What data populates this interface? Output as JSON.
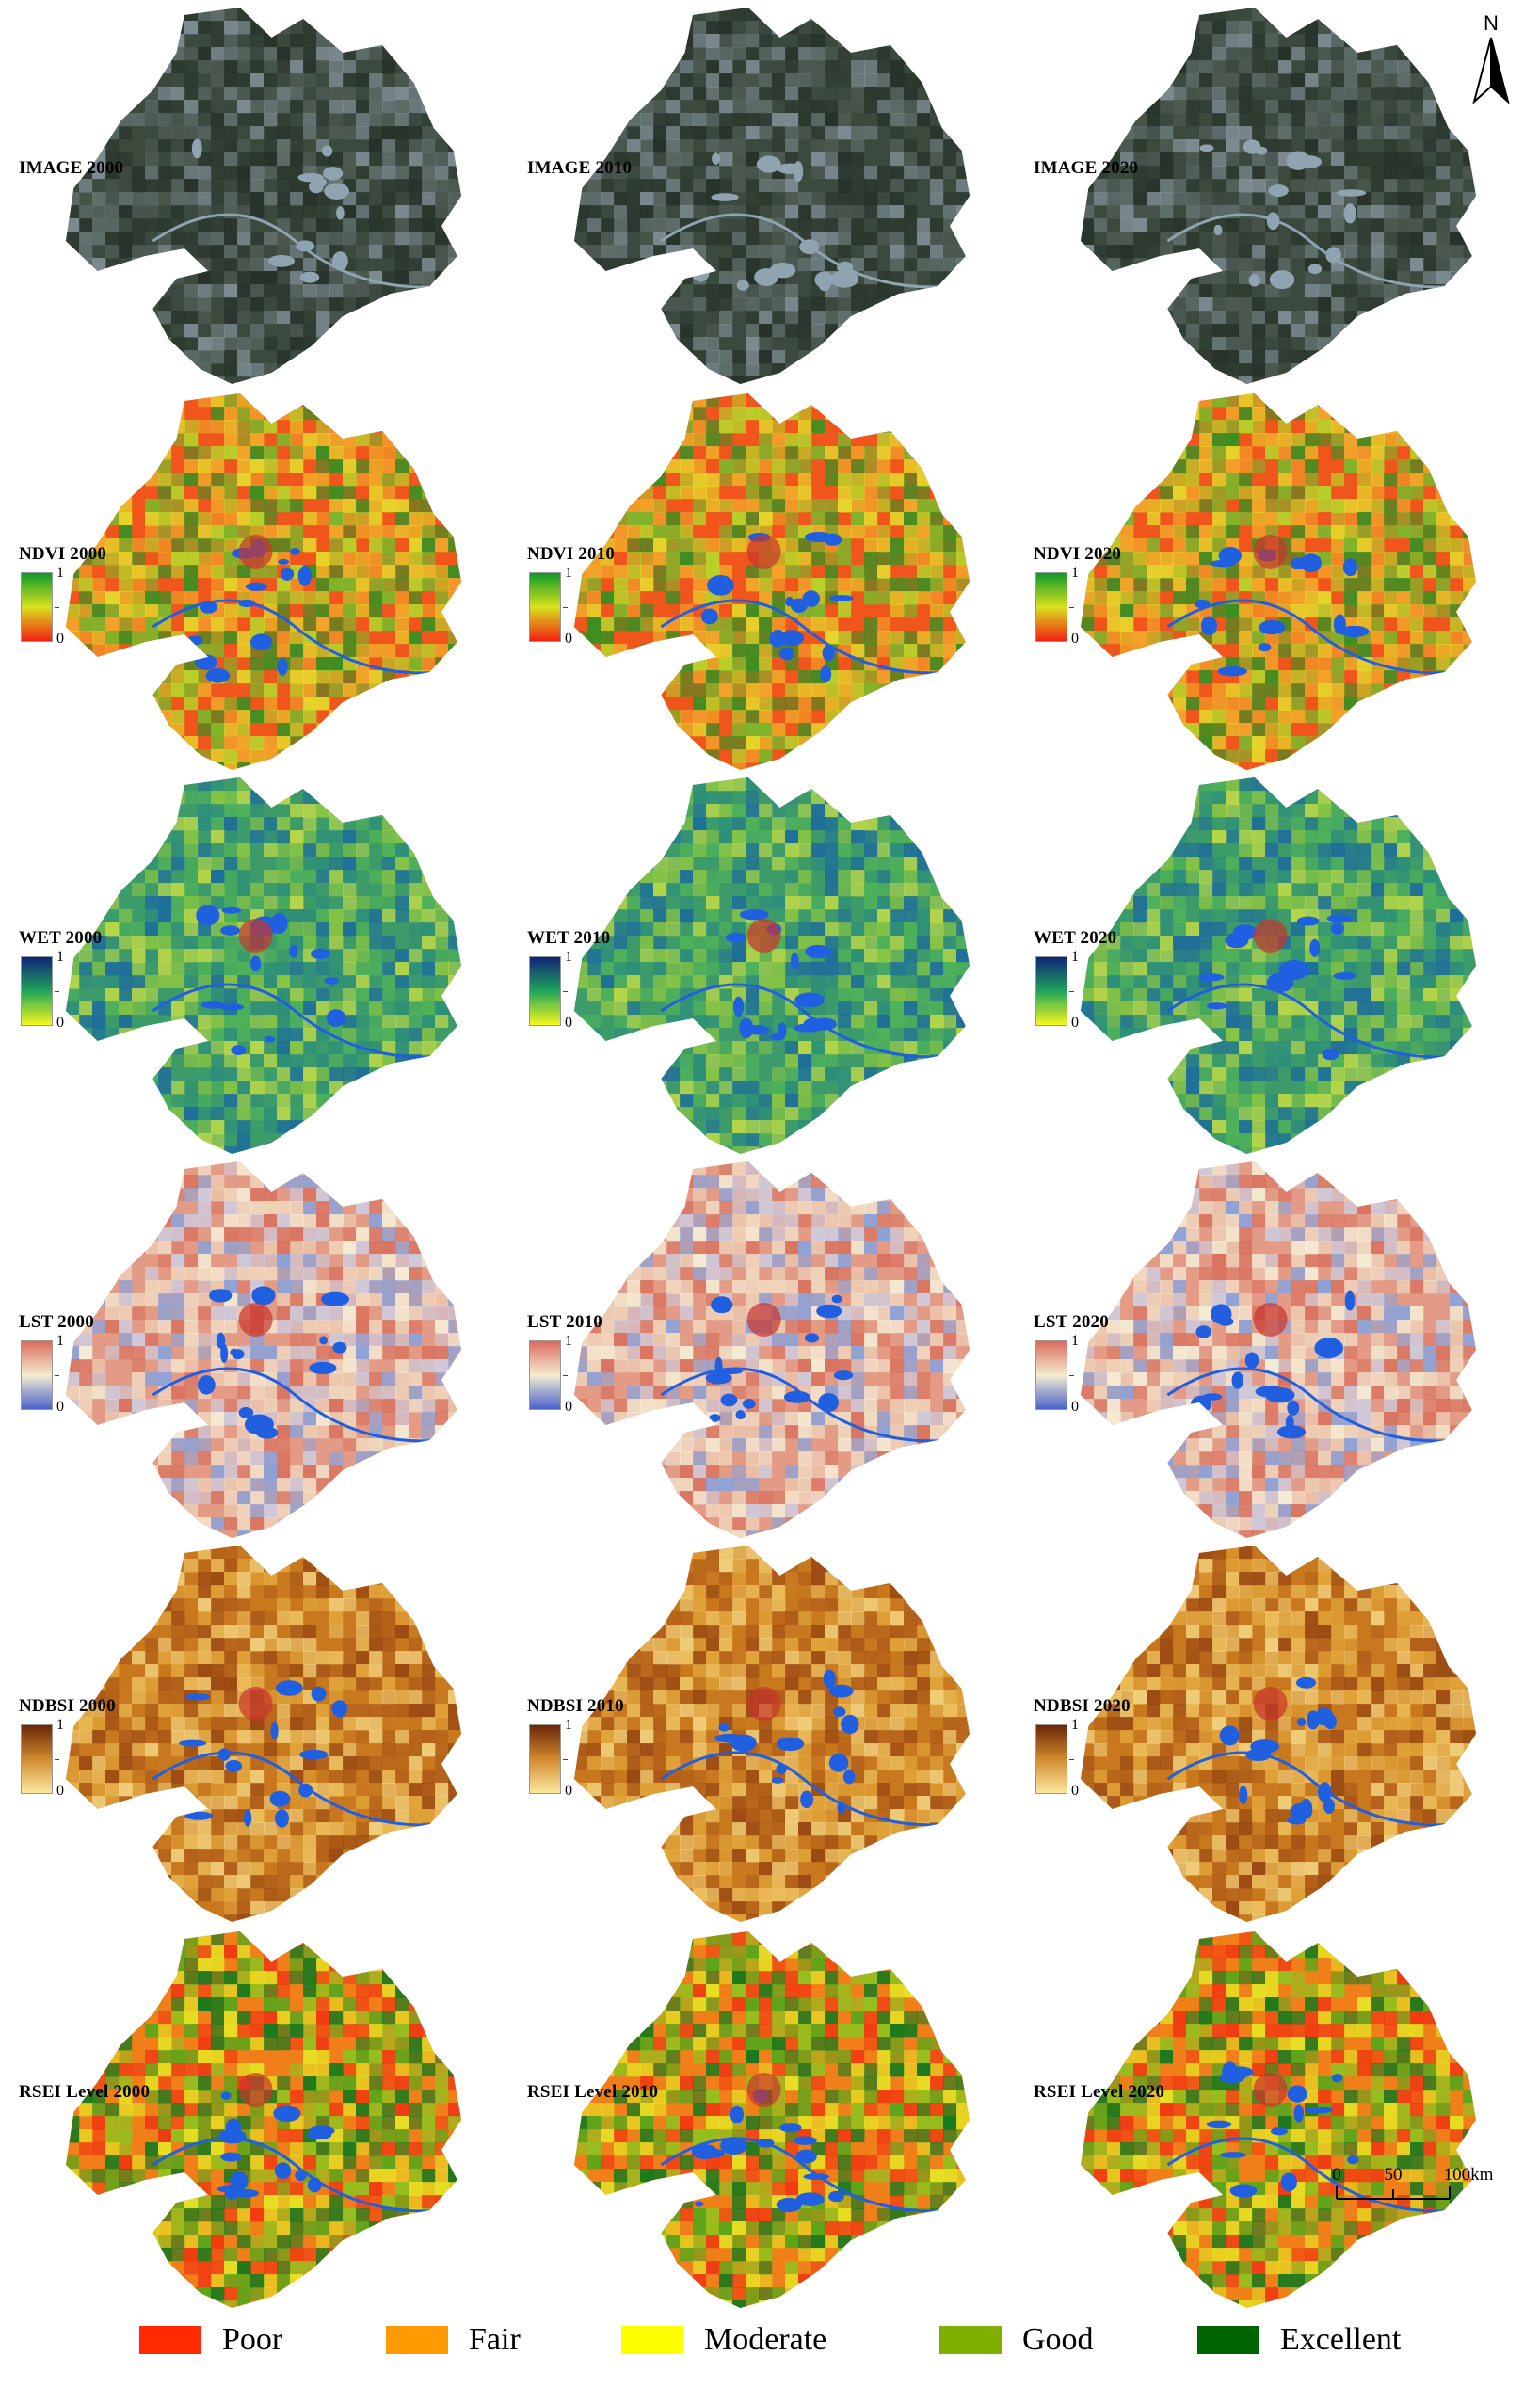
{
  "compass": {
    "label": "N"
  },
  "scale_bar": {
    "ticks": [
      "0",
      "50",
      "100km"
    ]
  },
  "rows": [
    {
      "id": "image",
      "ramp": "satellite",
      "labels": [
        "IMAGE 2000",
        "IMAGE 2010",
        "IMAGE 2020"
      ],
      "colorbar": null
    },
    {
      "id": "ndvi",
      "ramp": "ndvi",
      "labels": [
        "NDVI 2000",
        "NDVI 2010",
        "NDVI 2020"
      ],
      "colorbar": {
        "max": "1",
        "min": "0",
        "colors": [
          "#0e9a2a",
          "#d9e21e",
          "#f21f12"
        ]
      }
    },
    {
      "id": "wet",
      "ramp": "wet",
      "labels": [
        "WET 2000",
        "WET 2010",
        "WET 2020"
      ],
      "colorbar": {
        "max": "1",
        "min": "0",
        "colors": [
          "#10237a",
          "#1fa55a",
          "#f7f71e"
        ]
      }
    },
    {
      "id": "lst",
      "ramp": "lst",
      "labels": [
        "LST 2000",
        "LST 2010",
        "LST 2020"
      ],
      "colorbar": {
        "max": "1",
        "min": "0",
        "colors": [
          "#dc6a5d",
          "#f4ecd0",
          "#4a63c9"
        ]
      }
    },
    {
      "id": "ndbsi",
      "ramp": "ndbsi",
      "labels": [
        "NDBSI 2000",
        "NDBSI 2010",
        "NDBSI 2020"
      ],
      "colorbar": {
        "max": "1",
        "min": "0",
        "colors": [
          "#6b2608",
          "#d08a2e",
          "#fbe9a0"
        ]
      }
    },
    {
      "id": "rsei",
      "ramp": "rsei",
      "labels": [
        "RSEI Level 2000",
        "RSEI Level 2010",
        "RSEI Level 2020"
      ],
      "colorbar": null
    }
  ],
  "ramps": {
    "satellite": [
      "#3b4a3e",
      "#2d3a30",
      "#4d5a52",
      "#5f6e6a",
      "#7d8c92",
      "#27332a"
    ],
    "ndvi": [
      "#f0561c",
      "#f2a52a",
      "#e6d52b",
      "#b9cf2a",
      "#7fb52a",
      "#3e8f22"
    ],
    "wet": [
      "#3d9b6a",
      "#2e8f7a",
      "#4fb15a",
      "#87c445",
      "#1f6f9a",
      "#b6d64a"
    ],
    "lst": [
      "#e39b86",
      "#f0d6bd",
      "#cfc9d9",
      "#8fa2d6",
      "#d97460",
      "#f5ead3"
    ],
    "ndbsi": [
      "#c8781e",
      "#e1a43a",
      "#9b4a14",
      "#f0cd7a",
      "#b2601a",
      "#ecbe5c"
    ],
    "rsei": [
      "#f07f1a",
      "#5ea51a",
      "#e6df24",
      "#1c7a1e",
      "#94bf1e",
      "#ef3c12"
    ]
  },
  "legend": [
    {
      "label": "Poor",
      "color": "#ff2a00"
    },
    {
      "label": "Fair",
      "color": "#ff9a00"
    },
    {
      "label": "Moderate",
      "color": "#ffff00"
    },
    {
      "label": "Good",
      "color": "#7fb000"
    },
    {
      "label": "Excellent",
      "color": "#006400"
    }
  ],
  "water_color": "#1f5fe0",
  "urban_color": "#c8352c"
}
